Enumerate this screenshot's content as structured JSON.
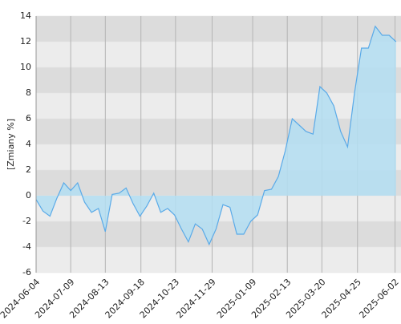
{
  "chart_data": {
    "type": "area",
    "y_label": "[Zmiany %]",
    "x": [
      "2024-06-04",
      "2024-06-11",
      "2024-06-18",
      "2024-06-25",
      "2024-07-02",
      "2024-07-09",
      "2024-07-16",
      "2024-07-23",
      "2024-07-30",
      "2024-08-06",
      "2024-08-13",
      "2024-08-20",
      "2024-08-27",
      "2024-09-03",
      "2024-09-10",
      "2024-09-17",
      "2024-09-24",
      "2024-10-01",
      "2024-10-08",
      "2024-10-15",
      "2024-10-22",
      "2024-10-29",
      "2024-11-05",
      "2024-11-12",
      "2024-11-19",
      "2024-11-26",
      "2024-12-03",
      "2024-12-10",
      "2024-12-17",
      "2024-12-24",
      "2024-12-31",
      "2025-01-07",
      "2025-01-14",
      "2025-01-21",
      "2025-01-28",
      "2025-02-04",
      "2025-02-11",
      "2025-02-18",
      "2025-02-25",
      "2025-03-04",
      "2025-03-11",
      "2025-03-18",
      "2025-03-25",
      "2025-04-01",
      "2025-04-08",
      "2025-04-15",
      "2025-04-22",
      "2025-04-29",
      "2025-05-06",
      "2025-05-13",
      "2025-05-20",
      "2025-05-27",
      "2025-06-03"
    ],
    "values": [
      -0.3,
      -1.2,
      -1.6,
      -0.2,
      1.0,
      0.4,
      1.0,
      -0.5,
      -1.3,
      -1.0,
      -2.8,
      0.1,
      0.2,
      0.6,
      -0.6,
      -1.6,
      -0.8,
      0.2,
      -1.3,
      -1.0,
      -1.5,
      -2.6,
      -3.6,
      -2.2,
      -2.6,
      -3.8,
      -2.6,
      -0.7,
      -0.9,
      -3.0,
      -3.0,
      -2.0,
      -1.5,
      0.4,
      0.5,
      1.5,
      3.5,
      6.0,
      5.5,
      5.0,
      4.8,
      8.5,
      8.0,
      7.0,
      5.0,
      3.8,
      8.0,
      11.5,
      11.5,
      13.2,
      12.5,
      12.5,
      12.0
    ],
    "line_color": "#5aaae8",
    "fill_color": "#b3def2",
    "xlim": [
      "2024-06-04",
      "2025-06-08"
    ],
    "xticks": [
      "2024-06-04",
      "2024-07-09",
      "2024-08-13",
      "2024-09-18",
      "2024-10-23",
      "2024-11-29",
      "2025-01-09",
      "2025-02-13",
      "2025-03-20",
      "2025-04-25",
      "2025-06-02"
    ],
    "ylim": [
      -6,
      14
    ],
    "yticks": [
      -6,
      -4,
      -2,
      0,
      2,
      4,
      6,
      8,
      10,
      12,
      14
    ],
    "grid": true
  }
}
